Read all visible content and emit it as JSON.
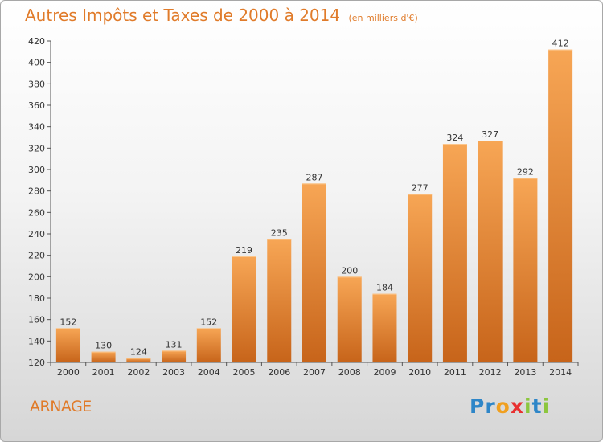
{
  "title": "Autres Impôts et Taxes de 2000 à 2014",
  "subtitle": "(en milliers d'€)",
  "town": "ARNAGE",
  "logo": {
    "letters": [
      "P",
      "r",
      "o",
      "x",
      "i",
      "t",
      "i"
    ],
    "colors": [
      "#2e86c8",
      "#2e86c8",
      "#f0a020",
      "#e83030",
      "#8cc63e",
      "#2e86c8",
      "#8cc63e"
    ]
  },
  "colors": {
    "accent": "#e07b2a",
    "bar_top": "#f7a655",
    "bar_bottom": "#c7641a"
  },
  "chart_data": {
    "type": "bar",
    "categories": [
      "2000",
      "2001",
      "2002",
      "2003",
      "2004",
      "2005",
      "2006",
      "2007",
      "2008",
      "2009",
      "2010",
      "2011",
      "2012",
      "2013",
      "2014"
    ],
    "values": [
      152,
      130,
      124,
      131,
      152,
      219,
      235,
      287,
      200,
      184,
      277,
      324,
      327,
      292,
      412
    ],
    "title": "Autres Impôts et Taxes de 2000 à 2014",
    "xlabel": "",
    "ylabel": "",
    "ylim": [
      120,
      420
    ],
    "yticks": [
      120,
      140,
      160,
      180,
      200,
      220,
      240,
      260,
      280,
      300,
      320,
      340,
      360,
      380,
      400,
      420
    ],
    "grid": false,
    "legend": "none"
  }
}
